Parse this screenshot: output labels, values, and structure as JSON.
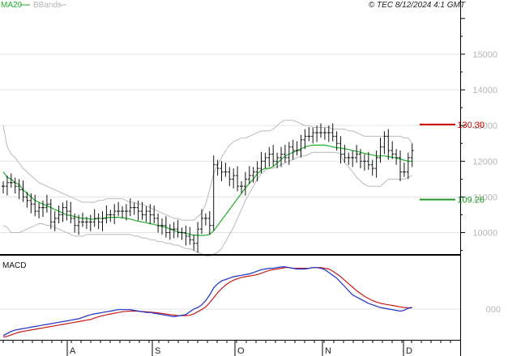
{
  "header": {
    "legend_ma20": "MA20",
    "legend_bbands": "BBands",
    "stamp": "© TEC 8/12/2024 4:1 GMT"
  },
  "colors": {
    "price_bar": "#111111",
    "ma20": "#1fae2a",
    "bbands": "#b9b9b9",
    "resistance": "#cc0000",
    "support": "#1c9a22",
    "macd": "#2030c8",
    "signal": "#cc1a1a",
    "grid": "#e3e3e3"
  },
  "chart_data": [
    {
      "type": "ohlc",
      "title": "",
      "x_ticks": [
        "A",
        "S",
        "O",
        "N",
        "D"
      ],
      "y_ticks": [
        "10000",
        "11000",
        "12000",
        "13000",
        "14000",
        "15000"
      ],
      "ylim": [
        9400,
        16200
      ],
      "grid": true,
      "levels": [
        {
          "label": "130.30",
          "value": 13030,
          "role": "resistance"
        },
        {
          "label": "109.26",
          "value": 10926,
          "role": "support"
        }
      ],
      "series": [
        {
          "name": "close",
          "values": [
            11300,
            11400,
            11400,
            11300,
            11200,
            11000,
            10900,
            10800,
            10600,
            10700,
            10700,
            10800,
            10300,
            10400,
            10500,
            10700,
            10600,
            10400,
            10200,
            10300,
            10300,
            10300,
            10300,
            10400,
            10300,
            10400,
            10500,
            10500,
            10600,
            10600,
            10600,
            10600,
            10700,
            10700,
            10600,
            10500,
            10600,
            10500,
            10400,
            10200,
            10200,
            10000,
            10100,
            10100,
            10000,
            10000,
            9900,
            9800,
            9700,
            10100,
            10400,
            10400,
            10200,
            11900,
            11800,
            11700,
            11700,
            11500,
            11600,
            11300,
            11300,
            11500,
            11600,
            11700,
            11800,
            12000,
            12100,
            12200,
            12000,
            12100,
            12200,
            12100,
            12400,
            12300,
            12300,
            12600,
            12700,
            12700,
            12800,
            12800,
            12800,
            12800,
            12800,
            12700,
            12500,
            12200,
            12100,
            12100,
            12100,
            12200,
            12000,
            12000,
            11900,
            11800,
            12100,
            12400,
            12700,
            12300,
            12200,
            12100,
            11700,
            11700,
            12100,
            12300
          ]
        },
        {
          "name": "MA20",
          "values": [
            11700,
            11550,
            11500,
            11400,
            11350,
            11200,
            11100,
            11000,
            10900,
            10850,
            10800,
            10750,
            10700,
            10650,
            10600,
            10550,
            10500,
            10480,
            10450,
            10420,
            10400,
            10400,
            10380,
            10380,
            10400,
            10400,
            10420,
            10430,
            10430,
            10430,
            10420,
            10400,
            10380,
            10350,
            10320,
            10300,
            10280,
            10250,
            10230,
            10200,
            10170,
            10150,
            10100,
            10060,
            10020,
            10000,
            9980,
            9950,
            9930,
            9930,
            9920,
            9930,
            9950,
            10050,
            10200,
            10350,
            10500,
            10650,
            10800,
            10950,
            11100,
            11250,
            11380,
            11500,
            11650,
            11750,
            11800,
            11800,
            11850,
            11950,
            12050,
            12150,
            12200,
            12250,
            12300,
            12350,
            12400,
            12430,
            12450,
            12450,
            12450,
            12450,
            12430,
            12400,
            12380,
            12370,
            12350,
            12330,
            12300,
            12280,
            12250,
            12220,
            12200,
            12180,
            12150,
            12150,
            12150,
            12130,
            12110,
            12090,
            12060,
            12030,
            12000,
            12000
          ]
        },
        {
          "name": "BBands upper",
          "values": [
            13000,
            12400,
            12200,
            12100,
            11950,
            11800,
            11700,
            11600,
            11500,
            11400,
            11350,
            11300,
            11250,
            11200,
            11150,
            11100,
            11050,
            11000,
            10950,
            10900,
            10850,
            10850,
            10850,
            10850,
            10900,
            10900,
            10950,
            10950,
            10950,
            10950,
            10950,
            10900,
            10850,
            10850,
            10800,
            10800,
            10750,
            10700,
            10650,
            10600,
            10550,
            10500,
            10450,
            10400,
            10400,
            10350,
            10350,
            10350,
            10350,
            10450,
            10550,
            10800,
            11200,
            11650,
            11900,
            12100,
            12300,
            12450,
            12550,
            12600,
            12650,
            12650,
            12700,
            12750,
            12800,
            12850,
            12850,
            12850,
            12900,
            13000,
            13100,
            13150,
            13150,
            13150,
            13100,
            13050,
            13000,
            13000,
            12950,
            12950,
            12950,
            12950,
            12950,
            12900,
            12900,
            12900,
            12900,
            12850,
            12850,
            12800,
            12750,
            12700,
            12700,
            12700,
            12700,
            12700,
            12700,
            12700,
            12700,
            12700,
            12700,
            12650,
            12650,
            12500
          ]
        },
        {
          "name": "BBands lower",
          "values": [
            10200,
            10150,
            10000,
            10000,
            10000,
            10050,
            10100,
            10150,
            10200,
            10250,
            10250,
            10200,
            10200,
            10150,
            10100,
            10050,
            10000,
            9950,
            9900,
            9900,
            9900,
            9950,
            9950,
            9950,
            9950,
            9950,
            9950,
            9950,
            9950,
            9950,
            9950,
            9950,
            9950,
            9900,
            9900,
            9850,
            9850,
            9800,
            9800,
            9750,
            9750,
            9700,
            9700,
            9650,
            9650,
            9600,
            9550,
            9550,
            9500,
            9450,
            9400,
            9350,
            9350,
            9400,
            9450,
            9550,
            9750,
            9950,
            10150,
            10400,
            10650,
            10900,
            11100,
            11300,
            11500,
            11650,
            11750,
            11800,
            11800,
            11850,
            11900,
            11950,
            12000,
            12050,
            12100,
            12150,
            12150,
            12200,
            12250,
            12250,
            12250,
            12250,
            12250,
            12250,
            12250,
            12200,
            11950,
            11850,
            11700,
            11550,
            11450,
            11350,
            11300,
            11300,
            11300,
            11300,
            11400,
            11500,
            11500,
            11500,
            11500,
            11500,
            11550,
            11600
          ]
        }
      ]
    },
    {
      "type": "line",
      "title": "MACD",
      "x_ticks": [
        "A",
        "S",
        "O",
        "N",
        "D"
      ],
      "y_ticks": [
        "000"
      ],
      "ylim": [
        -2.2,
        3.8
      ],
      "series": [
        {
          "name": "MACD",
          "values": [
            -1.9,
            -1.75,
            -1.6,
            -1.5,
            -1.45,
            -1.4,
            -1.35,
            -1.3,
            -1.25,
            -1.2,
            -1.15,
            -1.1,
            -1.05,
            -1.0,
            -0.95,
            -0.9,
            -0.85,
            -0.8,
            -0.75,
            -0.7,
            -0.6,
            -0.5,
            -0.42,
            -0.35,
            -0.3,
            -0.25,
            -0.2,
            -0.15,
            -0.1,
            -0.05,
            -0.05,
            -0.05,
            -0.05,
            -0.1,
            -0.15,
            -0.2,
            -0.25,
            -0.25,
            -0.3,
            -0.35,
            -0.4,
            -0.45,
            -0.5,
            -0.55,
            -0.5,
            -0.45,
            -0.4,
            -0.2,
            0.0,
            0.1,
            0.3,
            0.6,
            1.0,
            1.5,
            1.8,
            2.0,
            2.1,
            2.2,
            2.3,
            2.35,
            2.4,
            2.45,
            2.5,
            2.6,
            2.7,
            2.8,
            2.85,
            2.9,
            2.9,
            2.95,
            3.0,
            3.0,
            2.95,
            2.9,
            2.85,
            2.85,
            2.85,
            2.9,
            2.95,
            2.95,
            2.9,
            2.8,
            2.6,
            2.4,
            2.2,
            1.9,
            1.6,
            1.3,
            1.0,
            0.85,
            0.7,
            0.55,
            0.4,
            0.3,
            0.2,
            0.1,
            0.05,
            0.0,
            -0.05,
            -0.1,
            -0.15,
            -0.1,
            0.05,
            0.1
          ]
        },
        {
          "name": "Signal",
          "values": [
            -2.0,
            -1.95,
            -1.85,
            -1.75,
            -1.65,
            -1.6,
            -1.55,
            -1.5,
            -1.45,
            -1.4,
            -1.35,
            -1.3,
            -1.25,
            -1.2,
            -1.15,
            -1.1,
            -1.05,
            -1.0,
            -0.95,
            -0.9,
            -0.85,
            -0.8,
            -0.75,
            -0.65,
            -0.55,
            -0.48,
            -0.42,
            -0.36,
            -0.3,
            -0.25,
            -0.2,
            -0.17,
            -0.15,
            -0.15,
            -0.16,
            -0.18,
            -0.2,
            -0.22,
            -0.25,
            -0.28,
            -0.32,
            -0.36,
            -0.4,
            -0.44,
            -0.47,
            -0.48,
            -0.47,
            -0.45,
            -0.35,
            -0.2,
            -0.05,
            0.15,
            0.45,
            0.8,
            1.15,
            1.45,
            1.7,
            1.9,
            2.05,
            2.15,
            2.25,
            2.3,
            2.35,
            2.4,
            2.45,
            2.55,
            2.65,
            2.75,
            2.8,
            2.85,
            2.9,
            2.95,
            2.95,
            2.9,
            2.9,
            2.9,
            2.9,
            2.9,
            2.95,
            2.95,
            2.95,
            2.9,
            2.85,
            2.7,
            2.5,
            2.3,
            2.05,
            1.8,
            1.55,
            1.3,
            1.1,
            0.9,
            0.75,
            0.6,
            0.5,
            0.4,
            0.35,
            0.3,
            0.25,
            0.2,
            0.15,
            0.1,
            0.08,
            0.1
          ]
        }
      ]
    }
  ]
}
